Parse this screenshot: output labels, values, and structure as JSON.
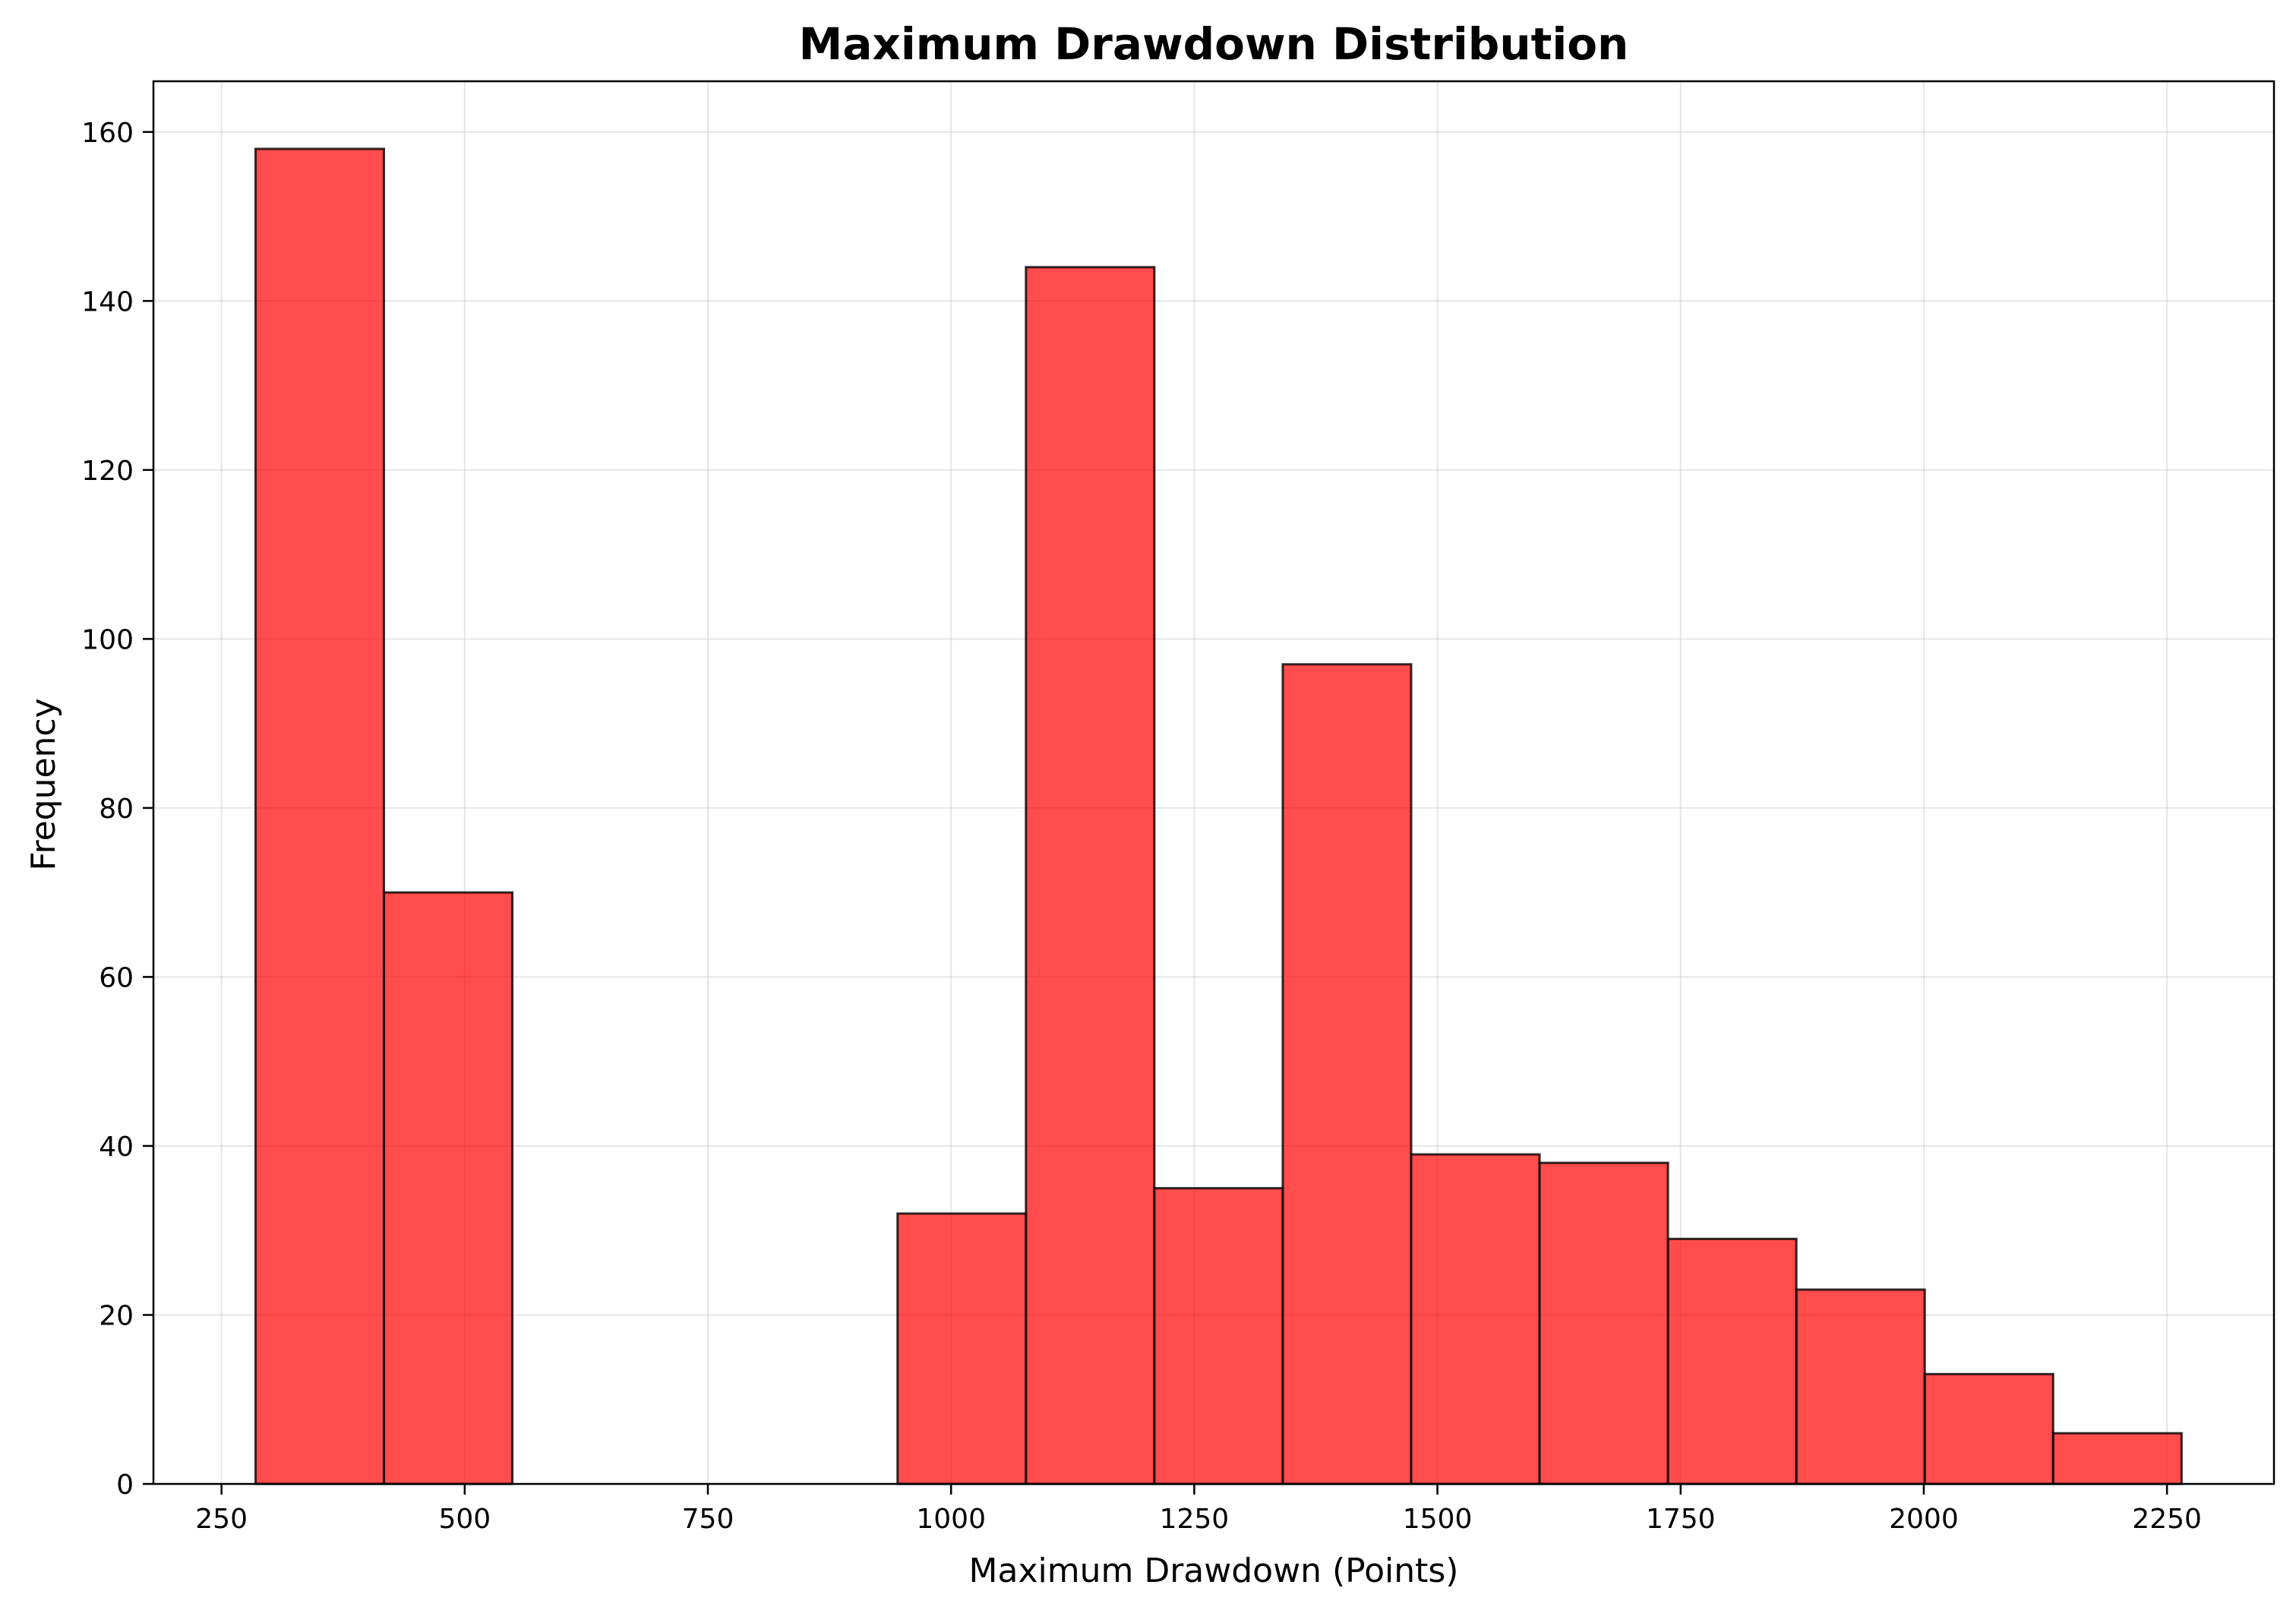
{
  "chart_data": {
    "type": "bar",
    "title": "Maximum Drawdown Distribution",
    "xlabel": "Maximum Drawdown (Points)",
    "ylabel": "Frequency",
    "xlim": [
      180,
      2360
    ],
    "ylim": [
      0,
      166
    ],
    "xticks": [
      250,
      500,
      750,
      1000,
      1250,
      1500,
      1750,
      2000,
      2250
    ],
    "yticks": [
      0,
      20,
      40,
      60,
      80,
      100,
      120,
      140,
      160
    ],
    "grid": true,
    "bar_color": "#ff0000",
    "edge_color": "#000000",
    "bins": [
      {
        "x0": 285,
        "x1": 417,
        "count": 158
      },
      {
        "x0": 417,
        "x1": 549,
        "count": 70
      },
      {
        "x0": 549,
        "x1": 681,
        "count": 0
      },
      {
        "x0": 681,
        "x1": 813,
        "count": 0
      },
      {
        "x0": 813,
        "x1": 945,
        "count": 0
      },
      {
        "x0": 945,
        "x1": 1077,
        "count": 32
      },
      {
        "x0": 1077,
        "x1": 1209,
        "count": 144
      },
      {
        "x0": 1209,
        "x1": 1341,
        "count": 35
      },
      {
        "x0": 1341,
        "x1": 1473,
        "count": 97
      },
      {
        "x0": 1473,
        "x1": 1605,
        "count": 39
      },
      {
        "x0": 1605,
        "x1": 1737,
        "count": 38
      },
      {
        "x0": 1737,
        "x1": 1869,
        "count": 29
      },
      {
        "x0": 1869,
        "x1": 2001,
        "count": 23
      },
      {
        "x0": 2001,
        "x1": 2133,
        "count": 13
      },
      {
        "x0": 2133,
        "x1": 2265,
        "count": 6
      }
    ]
  }
}
